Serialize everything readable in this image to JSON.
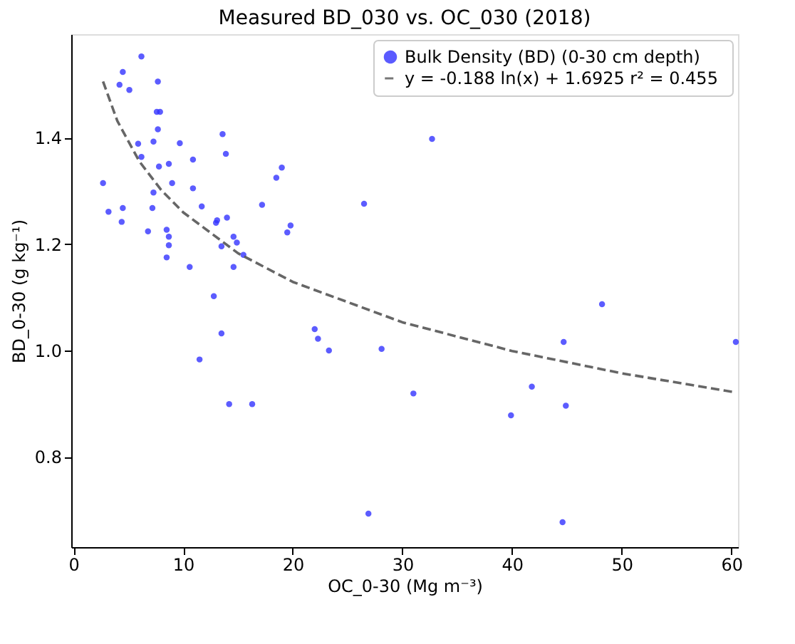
{
  "chart_data": {
    "type": "scatter",
    "title": "Measured BD_030 vs. OC_030 (2018)",
    "xlabel": "OC_0-30 (Mg m⁻³)",
    "ylabel": "BD_0-30 (g kg⁻¹)",
    "xlim": [
      -0.2,
      60.6
    ],
    "ylim": [
      0.63,
      1.595
    ],
    "xticks": [
      0,
      10,
      20,
      30,
      40,
      50,
      60
    ],
    "yticks": [
      {
        "value": 0.8,
        "label": "0.8"
      },
      {
        "value": 1.0,
        "label": "1.0"
      },
      {
        "value": 1.2,
        "label": "1.2"
      },
      {
        "value": 1.4,
        "label": "1.4"
      }
    ],
    "grid": false,
    "legend": "top right",
    "series": [
      {
        "name": "Bulk Density (BD) (0-30 cm depth)",
        "color": "#3333ff",
        "marker": "circle",
        "x": [
          6.2,
          4.5,
          4.2,
          5.1,
          7.7,
          7.6,
          7.9,
          7.7,
          5.9,
          7.3,
          9.7,
          13.6,
          13.9,
          6.2,
          10.9,
          7.8,
          8.7,
          19.0,
          18.5,
          2.7,
          9.0,
          10.9,
          7.3,
          3.2,
          4.5,
          7.2,
          11.7,
          17.2,
          4.4,
          13.0,
          13.1,
          14.0,
          19.8,
          19.5,
          6.8,
          8.5,
          8.7,
          8.7,
          8.5,
          14.6,
          14.9,
          13.5,
          15.5,
          10.6,
          14.6,
          12.8,
          13.5,
          11.5,
          14.2,
          16.3,
          22.0,
          22.3,
          32.7,
          26.5,
          23.3,
          28.1,
          31.0,
          39.9,
          41.8,
          44.7,
          44.9,
          48.2,
          60.4,
          26.9,
          44.6
        ],
        "values": [
          1.553,
          1.524,
          1.5,
          1.49,
          1.506,
          1.449,
          1.449,
          1.416,
          1.389,
          1.393,
          1.39,
          1.407,
          1.37,
          1.364,
          1.359,
          1.346,
          1.351,
          1.344,
          1.325,
          1.315,
          1.315,
          1.305,
          1.297,
          1.261,
          1.268,
          1.268,
          1.271,
          1.274,
          1.242,
          1.24,
          1.245,
          1.25,
          1.235,
          1.222,
          1.224,
          1.227,
          1.214,
          1.198,
          1.175,
          1.214,
          1.203,
          1.196,
          1.18,
          1.157,
          1.157,
          1.102,
          1.032,
          0.983,
          0.899,
          0.899,
          1.04,
          1.022,
          1.398,
          1.276,
          1.0,
          1.003,
          0.919,
          0.878,
          0.932,
          1.016,
          0.896,
          1.087,
          1.016,
          0.693,
          0.677
        ]
      },
      {
        "name": "y = -0.188 ln(x) + 1.6925  r² = 0.455",
        "type": "line",
        "color": "#555555",
        "line_style": "dashed",
        "marker": "none",
        "x": [
          2.7,
          4,
          6,
          8,
          10,
          15,
          20,
          30,
          40,
          50,
          60.4
        ],
        "values": [
          1.506,
          1.432,
          1.356,
          1.302,
          1.26,
          1.183,
          1.129,
          1.053,
          0.999,
          0.957,
          0.921
        ]
      }
    ]
  }
}
